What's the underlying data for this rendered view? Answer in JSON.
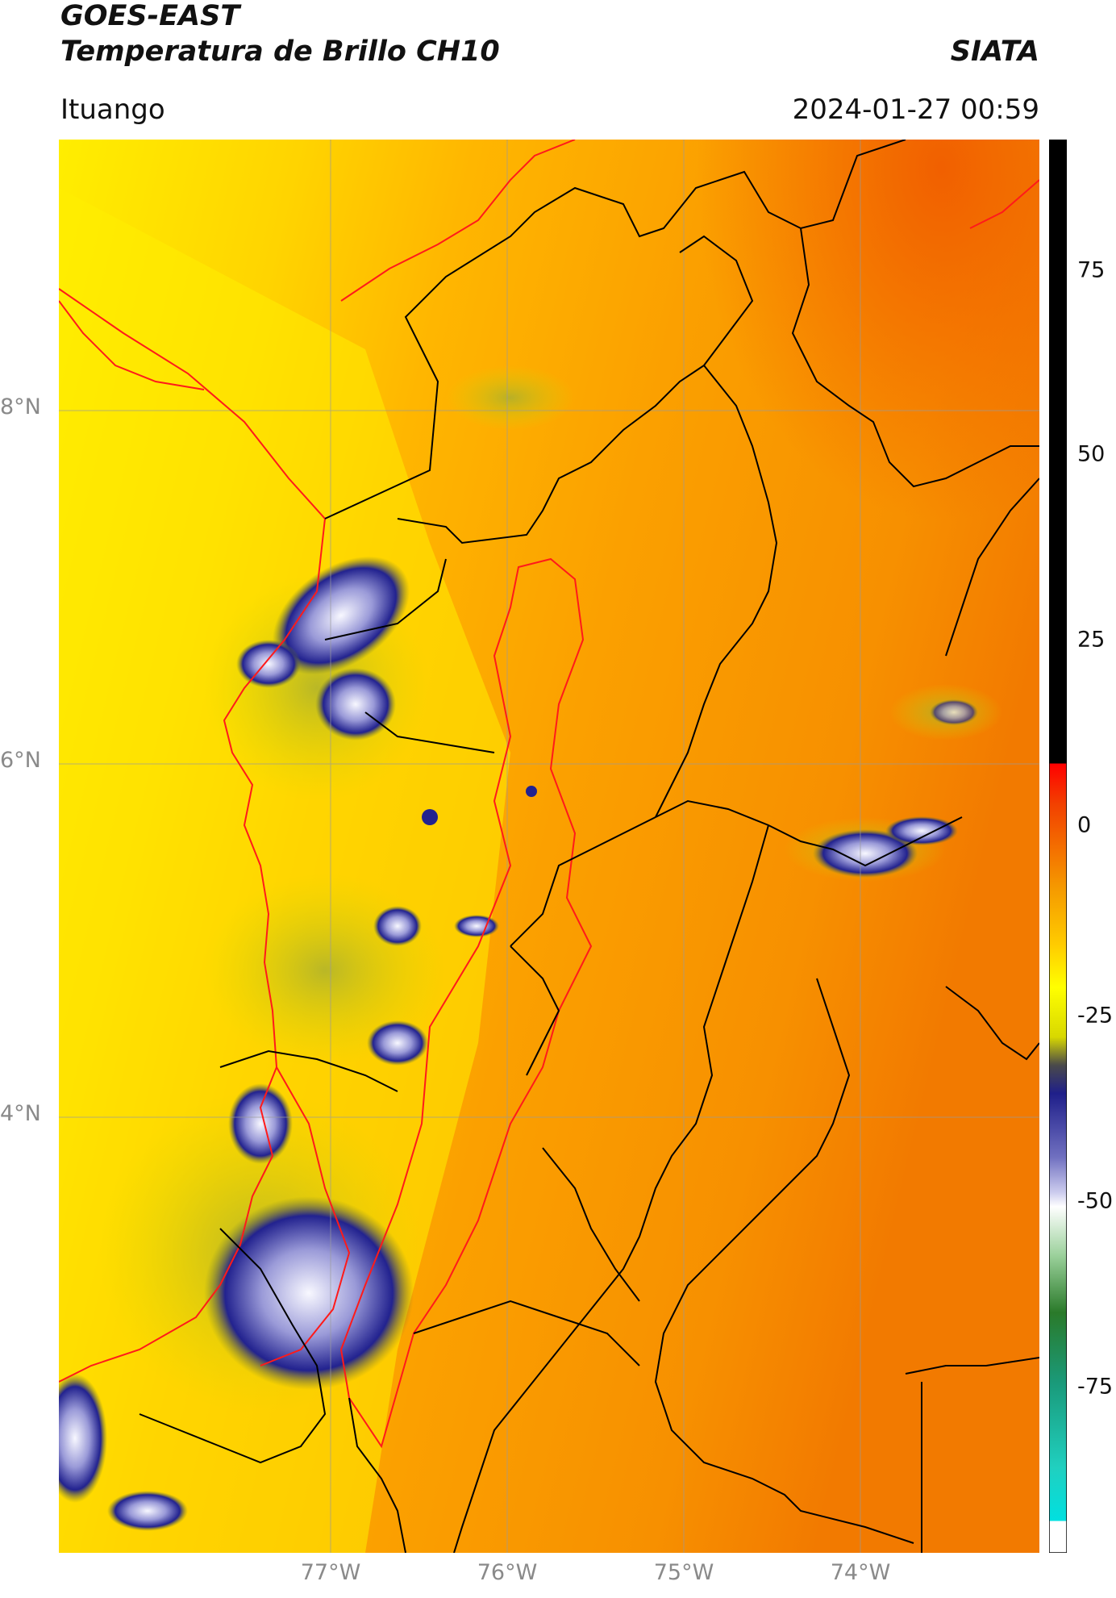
{
  "header": {
    "satellite": "GOES-EAST",
    "product": "Temperatura de Brillo CH10",
    "brand": "SIATA",
    "region": "Ituango",
    "timestamp": "2024-01-27 00:59"
  },
  "map": {
    "lat_labels": [
      "8°N",
      "6°N",
      "4°N"
    ],
    "lon_labels": [
      "77°W",
      "76°W",
      "75°W",
      "74°W"
    ],
    "gridlines": true
  },
  "colorbar": {
    "ticks": [
      "75",
      "50",
      "25",
      "0",
      "-25",
      "-50",
      "-75"
    ],
    "colors": {
      "cold_white": "#f5f5ff",
      "cold_blue": "#1f1f8a",
      "yellow": "#ffff00",
      "orange": "#f59a00",
      "red": "#e11a00",
      "black": "#000000",
      "cyan": "#10e0d0",
      "green": "#2a7a2a"
    }
  }
}
